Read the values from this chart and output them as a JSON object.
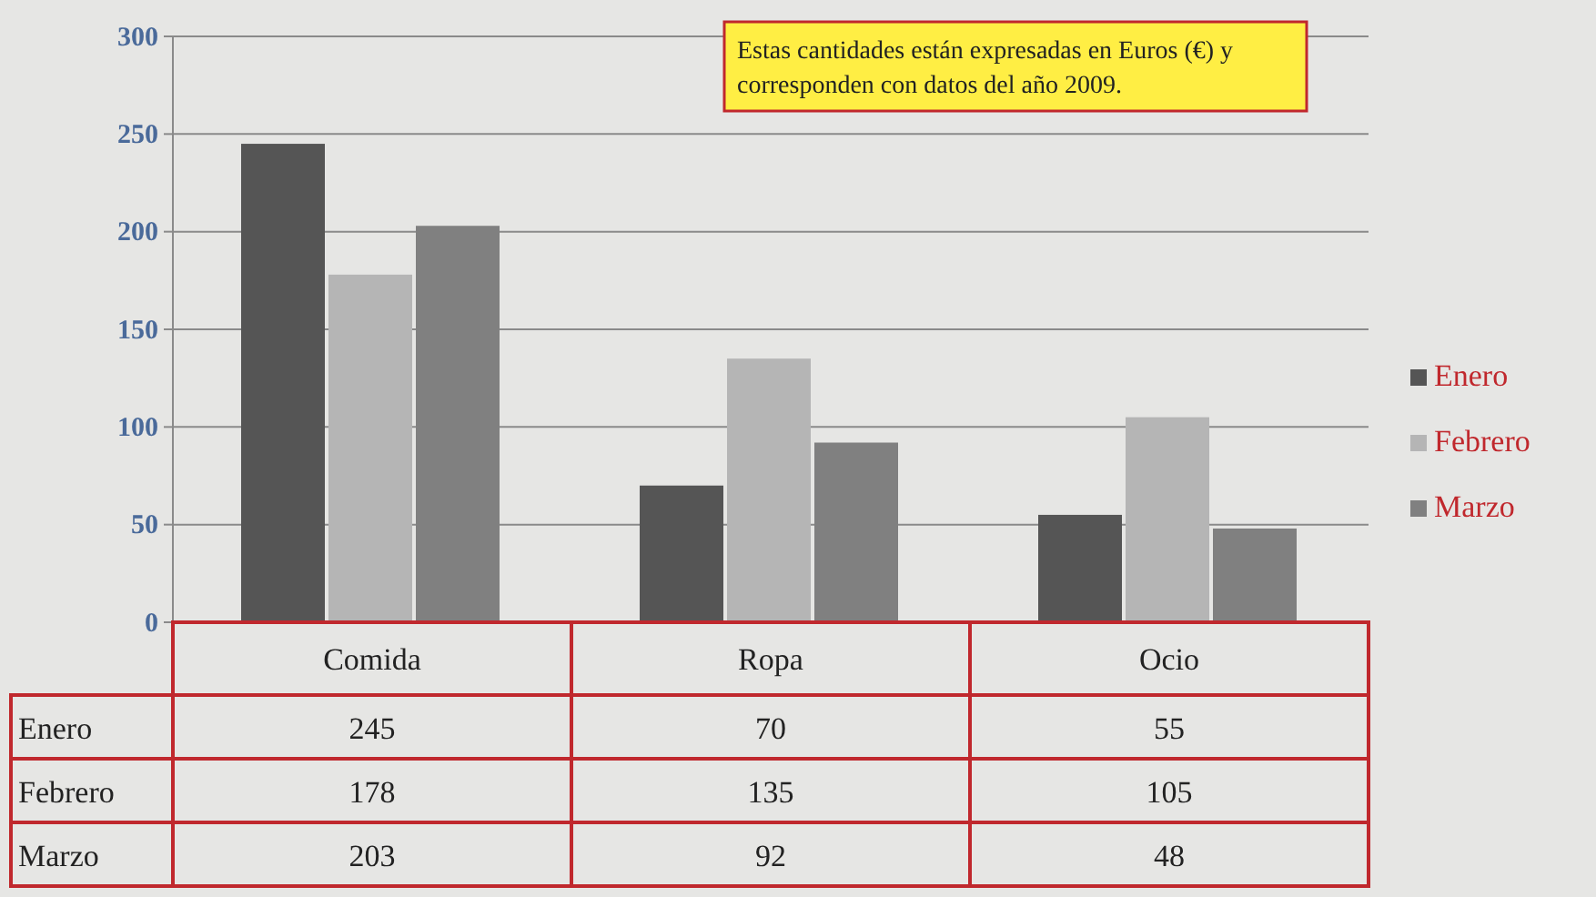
{
  "chart_data": {
    "type": "bar",
    "categories": [
      "Comida",
      "Ropa",
      "Ocio"
    ],
    "series": [
      {
        "name": "Enero",
        "color": "#555555",
        "values": [
          245,
          70,
          55
        ]
      },
      {
        "name": "Febrero",
        "color": "#b5b5b5",
        "values": [
          178,
          135,
          105
        ]
      },
      {
        "name": "Marzo",
        "color": "#808080",
        "values": [
          203,
          92,
          48
        ]
      }
    ],
    "ylim": [
      0,
      300
    ],
    "yticks": [
      0,
      50,
      100,
      150,
      200,
      250,
      300
    ],
    "grid": "y",
    "legend": "right",
    "data_labels": true,
    "annotations": [
      "Estas cantidades están expresadas en Euros (€) y corresponden con datos del año 2009."
    ]
  }
}
